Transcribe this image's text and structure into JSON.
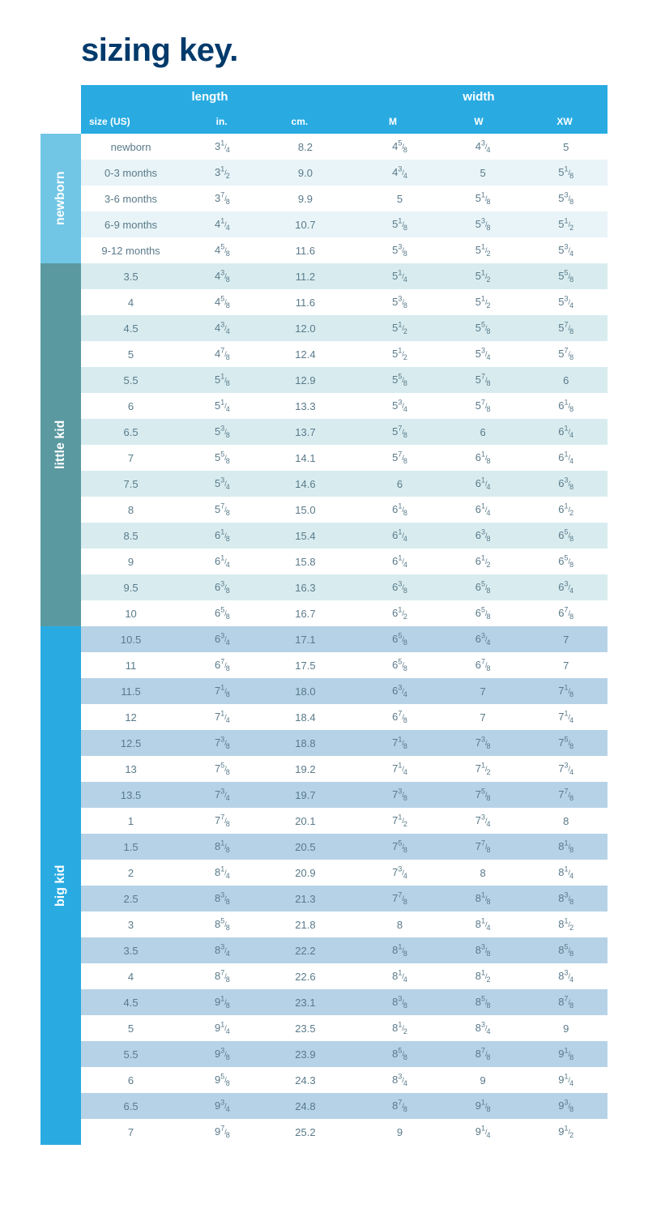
{
  "title": "sizing key.",
  "colors": {
    "title": "#003a6b",
    "header_bg": "#29abe2",
    "header_text": "#ffffff",
    "text": "#5a7a8a",
    "newborn_label_bg": "#71c6e6",
    "little_label_bg": "#5a99a0",
    "big_label_bg": "#29abe2",
    "newborn_alt": "#e8f4f7",
    "little_alt": "#d8ecef",
    "big_alt": "#b6d2e6",
    "row_base": "#ffffff"
  },
  "typography": {
    "title_fontsize": 40,
    "title_weight": 900,
    "header_fontsize": 15,
    "subheader_fontsize": 12,
    "cell_fontsize": 13,
    "fraction_fontsize": 9
  },
  "header": {
    "length_label": "length",
    "width_label": "width",
    "columns_length": [
      "size (US)",
      "in.",
      "cm."
    ],
    "columns_width": [
      "M",
      "W",
      "XW"
    ]
  },
  "sections": [
    {
      "name": "newborn",
      "label_bg": "#71c6e6",
      "alt_row_bg": "#e8f4f7",
      "base_row_bg": "#ffffff",
      "starts_with_base": true,
      "rows": [
        {
          "size": "newborn",
          "in": "3 1/4",
          "cm": "8.2",
          "M": "4 5/8",
          "W": "4 3/4",
          "XW": "5"
        },
        {
          "size": "0-3 months",
          "in": "3 1/2",
          "cm": "9.0",
          "M": "4 3/4",
          "W": "5",
          "XW": "5 1/8"
        },
        {
          "size": "3-6 months",
          "in": "3 7/8",
          "cm": "9.9",
          "M": "5",
          "W": "5 1/8",
          "XW": "5 3/8"
        },
        {
          "size": "6-9 months",
          "in": "4 1/4",
          "cm": "10.7",
          "M": "5 1/8",
          "W": "5 3/8",
          "XW": "5 1/2"
        },
        {
          "size": "9-12 months",
          "in": "4 5/8",
          "cm": "11.6",
          "M": "5 3/8",
          "W": "5 1/2",
          "XW": "5 3/4"
        }
      ]
    },
    {
      "name": "little kid",
      "label_bg": "#5a99a0",
      "alt_row_bg": "#d8ecef",
      "base_row_bg": "#ffffff",
      "starts_with_base": false,
      "rows": [
        {
          "size": "3.5",
          "in": "4 3/8",
          "cm": "11.2",
          "M": "5 1/4",
          "W": "5 1/2",
          "XW": "5 5/8"
        },
        {
          "size": "4",
          "in": "4 5/8",
          "cm": "11.6",
          "M": "5 3/8",
          "W": "5 1/2",
          "XW": "5 3/4"
        },
        {
          "size": "4.5",
          "in": "4 3/4",
          "cm": "12.0",
          "M": "5 1/2",
          "W": "5 5/8",
          "XW": "5 7/8"
        },
        {
          "size": "5",
          "in": "4 7/8",
          "cm": "12.4",
          "M": "5 1/2",
          "W": "5 3/4",
          "XW": "5 7/8"
        },
        {
          "size": "5.5",
          "in": "5 1/8",
          "cm": "12.9",
          "M": "5 5/8",
          "W": "5 7/8",
          "XW": "6"
        },
        {
          "size": "6",
          "in": "5 1/4",
          "cm": "13.3",
          "M": "5 3/4",
          "W": "5 7/8",
          "XW": "6 1/8"
        },
        {
          "size": "6.5",
          "in": "5 3/8",
          "cm": "13.7",
          "M": "5 7/8",
          "W": "6",
          "XW": "6 1/4"
        },
        {
          "size": "7",
          "in": "5 5/8",
          "cm": "14.1",
          "M": "5 7/8",
          "W": "6 1/8",
          "XW": "6 1/4"
        },
        {
          "size": "7.5",
          "in": "5 3/4",
          "cm": "14.6",
          "M": "6",
          "W": "6 1/4",
          "XW": "6 3/8"
        },
        {
          "size": "8",
          "in": "5 7/8",
          "cm": "15.0",
          "M": "6 1/8",
          "W": "6 1/4",
          "XW": "6 1/2"
        },
        {
          "size": "8.5",
          "in": "6 1/8",
          "cm": "15.4",
          "M": "6 1/4",
          "W": "6 3/8",
          "XW": "6 5/8"
        },
        {
          "size": "9",
          "in": "6 1/4",
          "cm": "15.8",
          "M": "6 1/4",
          "W": "6 1/2",
          "XW": "6 5/8"
        },
        {
          "size": "9.5",
          "in": "6 3/8",
          "cm": "16.3",
          "M": "6 3/8",
          "W": "6 5/8",
          "XW": "6 3/4"
        },
        {
          "size": "10",
          "in": "6 5/8",
          "cm": "16.7",
          "M": "6 1/2",
          "W": "6 5/8",
          "XW": "6 7/8"
        }
      ]
    },
    {
      "name": "big kid",
      "label_bg": "#29abe2",
      "alt_row_bg": "#b6d2e6",
      "base_row_bg": "#ffffff",
      "starts_with_base": false,
      "rows": [
        {
          "size": "10.5",
          "in": "6 3/4",
          "cm": "17.1",
          "M": "6 5/8",
          "W": "6 3/4",
          "XW": "7"
        },
        {
          "size": "11",
          "in": "6 7/8",
          "cm": "17.5",
          "M": "6 5/8",
          "W": "6 7/8",
          "XW": "7"
        },
        {
          "size": "11.5",
          "in": "7 1/8",
          "cm": "18.0",
          "M": "6 3/4",
          "W": "7",
          "XW": "7 1/8"
        },
        {
          "size": "12",
          "in": "7 1/4",
          "cm": "18.4",
          "M": "6 7/8",
          "W": "7",
          "XW": "7 1/4"
        },
        {
          "size": "12.5",
          "in": "7 3/8",
          "cm": "18.8",
          "M": "7 1/8",
          "W": "7 3/8",
          "XW": "7 5/8"
        },
        {
          "size": "13",
          "in": "7 5/8",
          "cm": "19.2",
          "M": "7 1/4",
          "W": "7 1/2",
          "XW": "7 3/4"
        },
        {
          "size": "13.5",
          "in": "7 3/4",
          "cm": "19.7",
          "M": "7 3/8",
          "W": "7 5/8",
          "XW": "7 7/8"
        },
        {
          "size": "1",
          "in": "7 7/8",
          "cm": "20.1",
          "M": "7 1/2",
          "W": "7 3/4",
          "XW": "8"
        },
        {
          "size": "1.5",
          "in": "8 1/8",
          "cm": "20.5",
          "M": "7 5/8",
          "W": "7 7/8",
          "XW": "8 1/8"
        },
        {
          "size": "2",
          "in": "8 1/4",
          "cm": "20.9",
          "M": "7 3/4",
          "W": "8",
          "XW": "8 1/4"
        },
        {
          "size": "2.5",
          "in": "8 3/8",
          "cm": "21.3",
          "M": "7 7/8",
          "W": "8 1/8",
          "XW": "8 3/8"
        },
        {
          "size": "3",
          "in": "8 5/8",
          "cm": "21.8",
          "M": "8",
          "W": "8 1/4",
          "XW": "8 1/2"
        },
        {
          "size": "3.5",
          "in": "8 3/4",
          "cm": "22.2",
          "M": "8 1/8",
          "W": "8 3/8",
          "XW": "8 5/8"
        },
        {
          "size": "4",
          "in": "8 7/8",
          "cm": "22.6",
          "M": "8 1/4",
          "W": "8 1/2",
          "XW": "8 3/4"
        },
        {
          "size": "4.5",
          "in": "9 1/8",
          "cm": "23.1",
          "M": "8 3/8",
          "W": "8 5/8",
          "XW": "8 7/8"
        },
        {
          "size": "5",
          "in": "9 1/4",
          "cm": "23.5",
          "M": "8 1/2",
          "W": "8 3/4",
          "XW": "9"
        },
        {
          "size": "5.5",
          "in": "9 3/8",
          "cm": "23.9",
          "M": "8 5/8",
          "W": "8 7/8",
          "XW": "9 1/8"
        },
        {
          "size": "6",
          "in": "9 5/8",
          "cm": "24.3",
          "M": "8 3/4",
          "W": "9",
          "XW": "9 1/4"
        },
        {
          "size": "6.5",
          "in": "9 3/4",
          "cm": "24.8",
          "M": "8 7/8",
          "W": "9 1/8",
          "XW": "9 3/8"
        },
        {
          "size": "7",
          "in": "9 7/8",
          "cm": "25.2",
          "M": "9",
          "W": "9 1/4",
          "XW": "9 1/2"
        }
      ]
    }
  ]
}
